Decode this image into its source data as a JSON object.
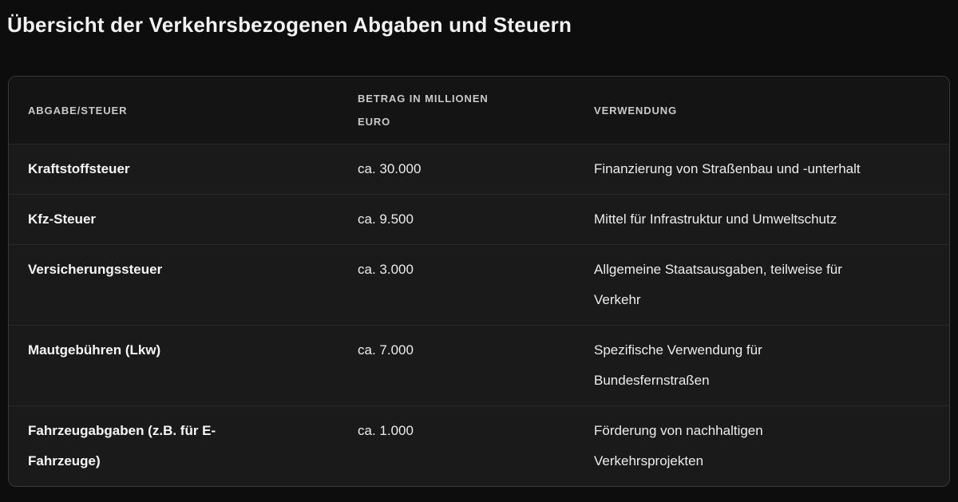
{
  "page": {
    "title": "Übersicht der Verkehrsbezogenen Abgaben und Steuern"
  },
  "colors": {
    "page_background": "#0d0d0d",
    "card_background": "#1a1a1a",
    "header_background": "#141414",
    "card_border": "#383838",
    "row_divider": "#2a2a2a",
    "title_text": "#f2f2f2",
    "header_text": "#c9c9c9",
    "body_text": "#ececec"
  },
  "table": {
    "columns": [
      {
        "key": "abgabe",
        "label": "ABGABE/STEUER"
      },
      {
        "key": "betrag",
        "label": "BETRAG IN MILLIONEN\nEURO"
      },
      {
        "key": "verwendung",
        "label": "VERWENDUNG"
      }
    ],
    "rows": [
      {
        "abgabe": "Kraftstoffsteuer",
        "betrag": "ca. 30.000",
        "verwendung": "Finanzierung von Straßenbau und -unterhalt"
      },
      {
        "abgabe": "Kfz-Steuer",
        "betrag": "ca. 9.500",
        "verwendung": "Mittel für Infrastruktur und Umweltschutz"
      },
      {
        "abgabe": "Versicherungssteuer",
        "betrag": "ca. 3.000",
        "verwendung": "Allgemeine Staatsausgaben, teilweise für\nVerkehr"
      },
      {
        "abgabe": "Mautgebühren (Lkw)",
        "betrag": "ca. 7.000",
        "verwendung": "Spezifische Verwendung für\nBundesfernstraßen"
      },
      {
        "abgabe": "Fahrzeugabgaben (z.B. für E-\nFahrzeuge)",
        "betrag": "ca. 1.000",
        "verwendung": "Förderung von nachhaltigen\nVerkehrsprojekten"
      }
    ]
  }
}
